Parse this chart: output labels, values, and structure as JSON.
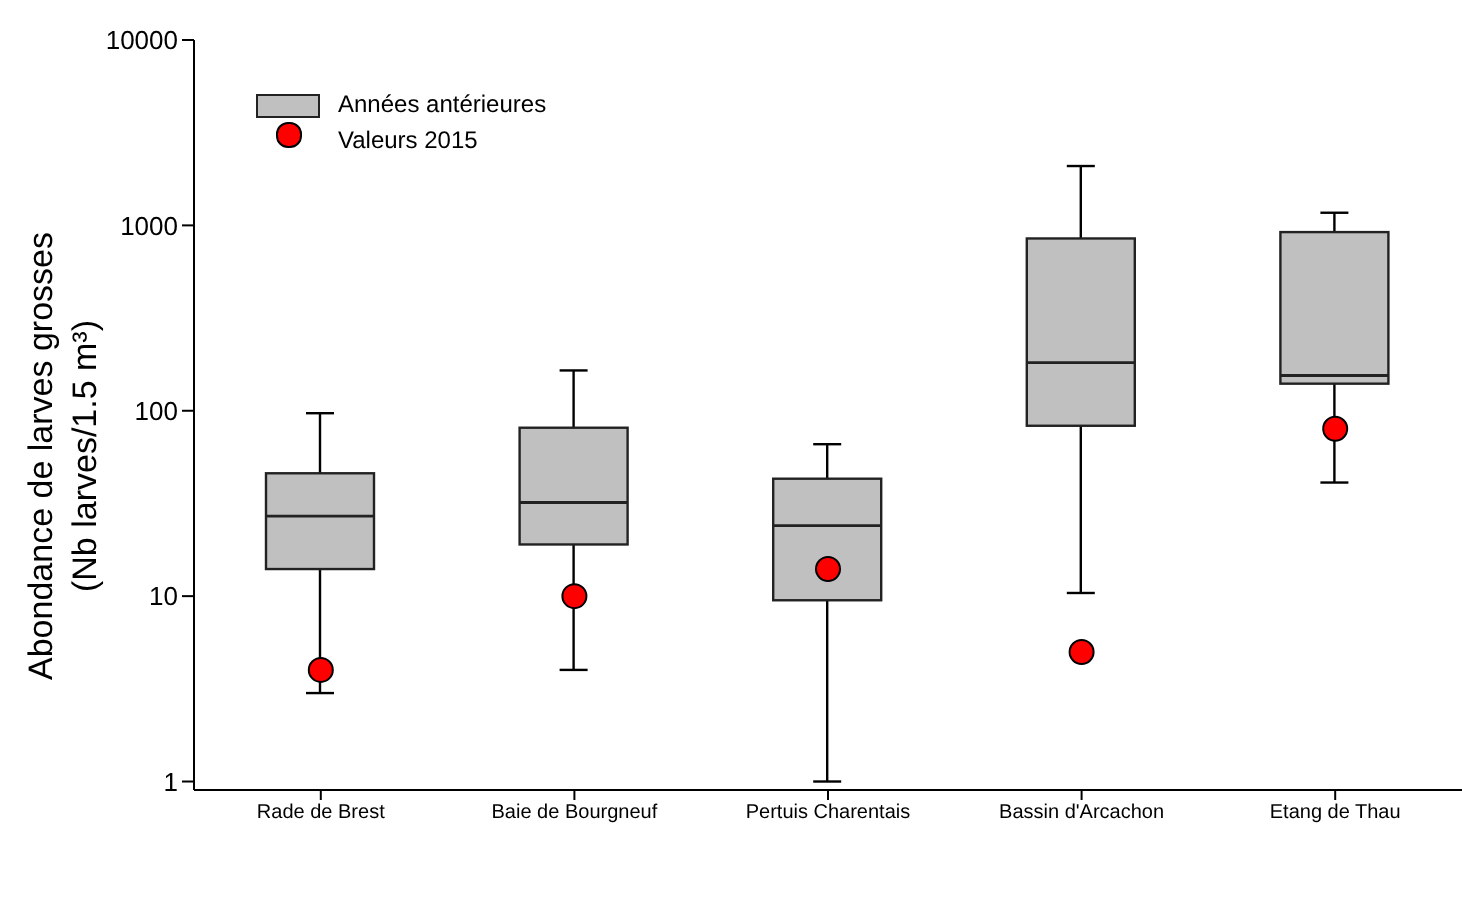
{
  "chart_data": {
    "type": "box",
    "ylabel": "Abondance de larves grosses\n(Nb larves/1.5 m³)",
    "categories": [
      "Rade de Brest",
      "Baie de Bourgneuf",
      "Pertuis Charentais",
      "Bassin d'Arcachon",
      "Etang de Thau"
    ],
    "series": [
      {
        "name": "Années antérieures",
        "type": "box",
        "color": "#c0c0c0",
        "boxes": [
          {
            "low": 3,
            "q1": 14,
            "median": 27,
            "q3": 46,
            "high": 97
          },
          {
            "low": 4,
            "q1": 19,
            "median": 32,
            "q3": 81,
            "high": 165
          },
          {
            "low": 1,
            "q1": 9.5,
            "median": 24,
            "q3": 43,
            "high": 66
          },
          {
            "low": 10.4,
            "q1": 83,
            "median": 182,
            "q3": 850,
            "high": 2090
          },
          {
            "low": 41,
            "q1": 140,
            "median": 155,
            "q3": 920,
            "high": 1170
          }
        ]
      },
      {
        "name": "Valeurs 2015",
        "type": "scatter",
        "color": "#ff0000",
        "marker": "circle",
        "x": [
          "Rade de Brest",
          "Baie de Bourgneuf",
          "Pertuis Charentais",
          "Bassin d'Arcachon",
          "Etang de Thau"
        ],
        "values": [
          4,
          10,
          14,
          5,
          80
        ]
      }
    ],
    "ylim": [
      0.9,
      10000
    ],
    "yticks": [
      1,
      10,
      100,
      1000,
      10000
    ],
    "log": true,
    "grid": false,
    "legend": "top left"
  }
}
